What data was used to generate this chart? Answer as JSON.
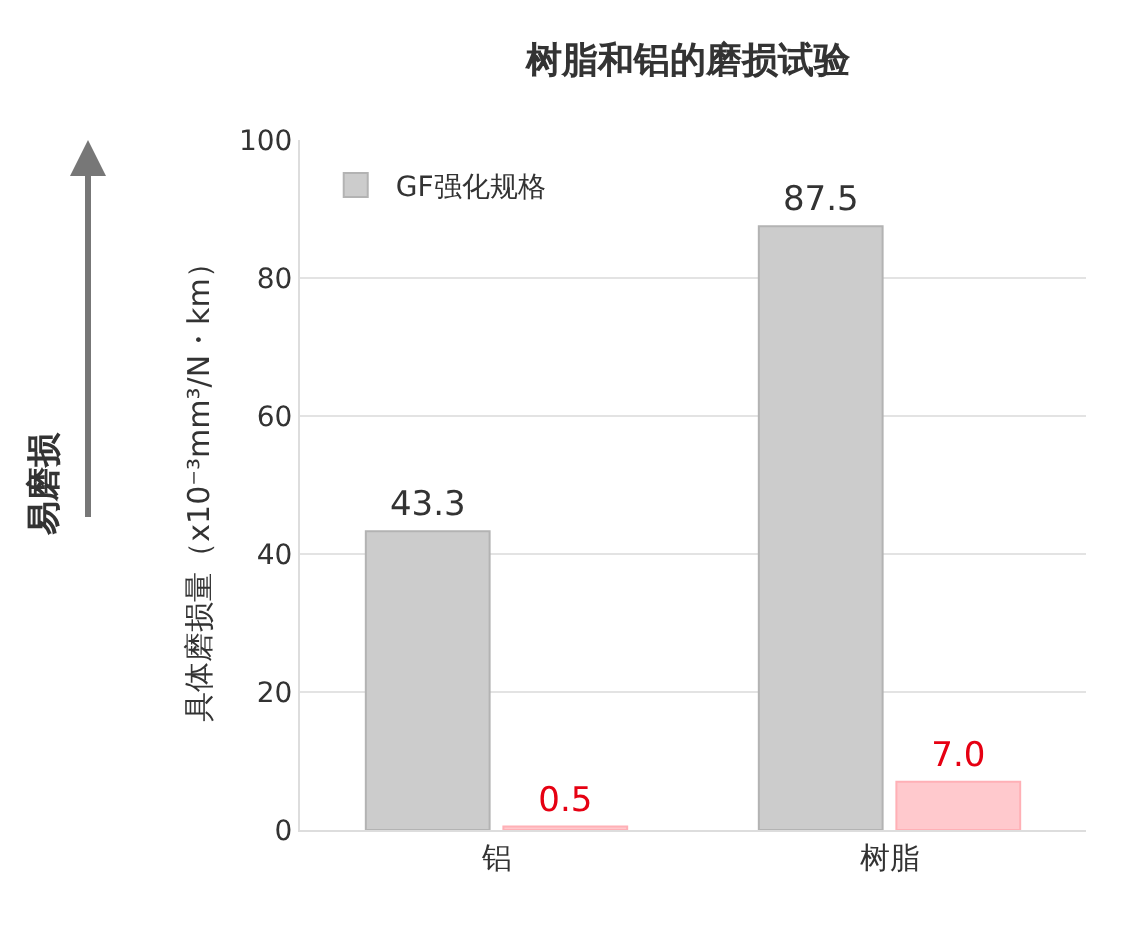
{
  "chart_data": {
    "type": "bar",
    "title": "树脂和铝的磨损试验",
    "ylabel": "具体磨损量（x10⁻³mm³/N・km）",
    "categories": [
      "铝",
      "树脂"
    ],
    "series": [
      {
        "name": "GF强化规格",
        "color": "#cccccc",
        "values": [
          43.3,
          87.5
        ],
        "value_labels": [
          "43.3",
          "87.5"
        ]
      },
      {
        "color": "#ffc9cd",
        "values": [
          0.5,
          7.0
        ],
        "value_labels": [
          "0.5",
          "7.0"
        ]
      }
    ],
    "ylim": [
      0,
      100
    ],
    "yticks": [
      0,
      20,
      40,
      60,
      80,
      100
    ],
    "grid": "y",
    "legend": "top left",
    "annotations": [
      "易磨损"
    ]
  }
}
